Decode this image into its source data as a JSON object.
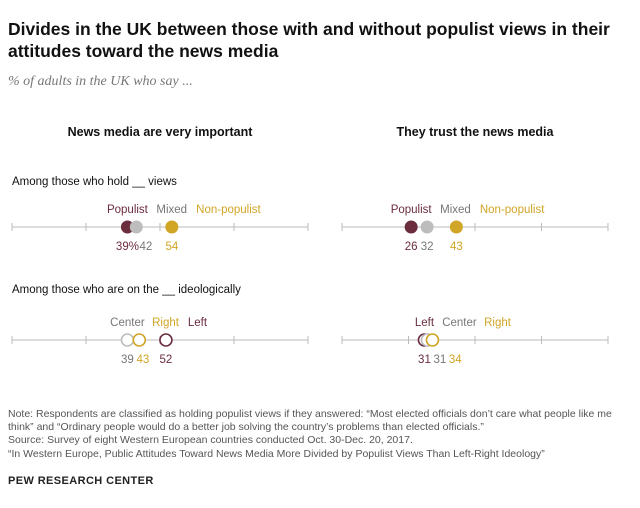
{
  "title": "Divides in the UK between those with and without populist views in their attitudes toward the news media",
  "subtitle": "% of adults in the UK who say ...",
  "colors": {
    "populist": "#6b2d3e",
    "mixed": "#bdbdbd",
    "non_populist": "#d1a526",
    "left": "#6b2d3e",
    "center": "#bdbdbd",
    "right": "#d1a526",
    "axis": "#bbbbbb"
  },
  "chart_data": {
    "type": "scatter",
    "panels": [
      "News media are very important",
      "They trust the news media"
    ],
    "sections": [
      {
        "label": "Among those who hold __ views",
        "rows": [
          {
            "panel": 0,
            "points": [
              {
                "name": "Populist",
                "value": 39,
                "value_label": "39%",
                "color": "#6b2d3e",
                "filled": true
              },
              {
                "name": "Mixed",
                "value": 42,
                "value_label": "42",
                "color": "#bdbdbd",
                "filled": true
              },
              {
                "name": "Non-populist",
                "value": 54,
                "value_label": "54",
                "color": "#d1a526",
                "filled": true
              }
            ]
          },
          {
            "panel": 1,
            "points": [
              {
                "name": "Populist",
                "value": 26,
                "value_label": "26",
                "color": "#6b2d3e",
                "filled": true
              },
              {
                "name": "Mixed",
                "value": 32,
                "value_label": "32",
                "color": "#bdbdbd",
                "filled": true
              },
              {
                "name": "Non-populist",
                "value": 43,
                "value_label": "43",
                "color": "#d1a526",
                "filled": true
              }
            ]
          }
        ]
      },
      {
        "label": "Among those who are on the __ ideologically",
        "rows": [
          {
            "panel": 0,
            "points": [
              {
                "name": "Center",
                "value": 39,
                "value_label": "39",
                "color": "#bdbdbd",
                "filled": false
              },
              {
                "name": "Right",
                "value": 43,
                "value_label": "43",
                "color": "#d1a526",
                "filled": false
              },
              {
                "name": "Left",
                "value": 52,
                "value_label": "52",
                "color": "#6b2d3e",
                "filled": false
              }
            ]
          },
          {
            "panel": 1,
            "points": [
              {
                "name": "Left",
                "value": 31,
                "value_label": "31",
                "color": "#6b2d3e",
                "filled": false
              },
              {
                "name": "Center",
                "value": 31,
                "value_label": "31",
                "color": "#bdbdbd",
                "filled": false
              },
              {
                "name": "Right",
                "value": 34,
                "value_label": "34",
                "color": "#d1a526",
                "filled": false
              }
            ]
          }
        ]
      }
    ],
    "xlim": [
      0,
      100
    ],
    "xticks": [
      0,
      25,
      50,
      75,
      100
    ],
    "grid": false
  },
  "notes": {
    "note": "Note: Respondents are classified as holding populist views if they answered: “Most elected officials don’t care what people like me think” and “Ordinary people would do a better job solving the country’s problems than elected officials.”",
    "source": "Source: Survey of eight Western European countries conducted Oct. 30-Dec. 20, 2017.",
    "report": "“In Western Europe, Public Attitudes Toward News Media More Divided by Populist Views Than Left-Right Ideology”",
    "org": "PEW RESEARCH CENTER"
  }
}
